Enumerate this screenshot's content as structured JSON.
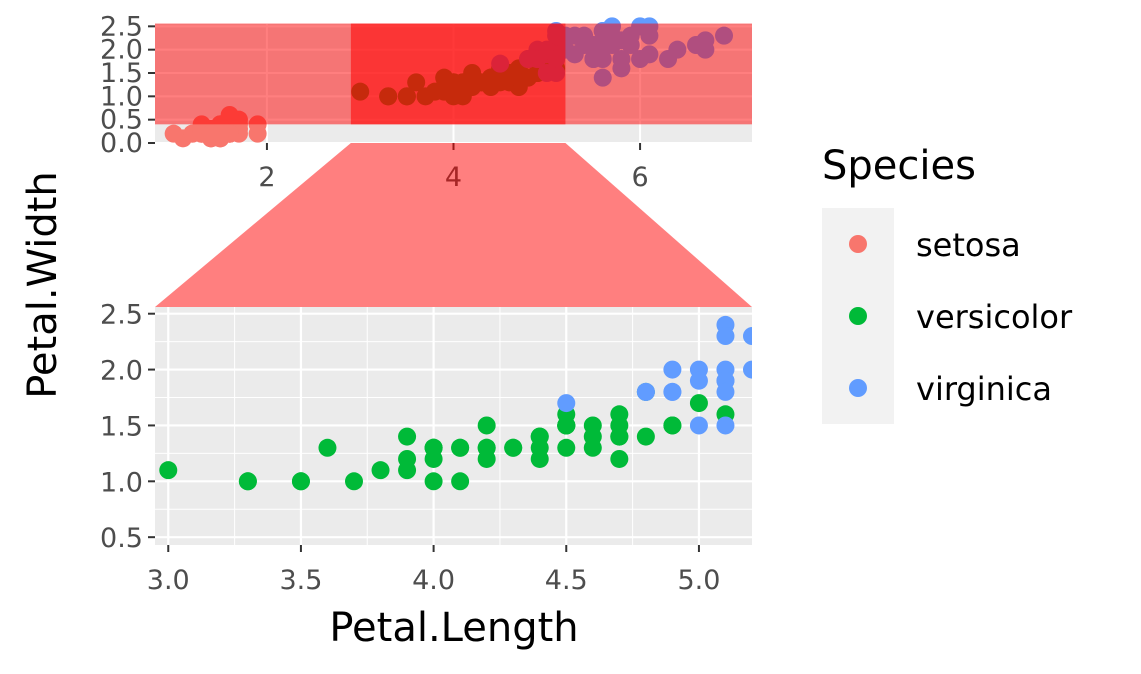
{
  "chart_data": {
    "type": "scatter",
    "xlabel": "Petal.Length",
    "ylabel": "Petal.Width",
    "overview_xticks": [
      2,
      4,
      6
    ],
    "overview_yticks": [
      "0.0",
      "0.5",
      "1.0",
      "1.5",
      "2.0",
      "2.5"
    ],
    "overview_xlim": [
      0.8,
      7.2
    ],
    "overview_ylim": [
      0.0,
      2.55
    ],
    "zoom_xlim": [
      2.95,
      5.2
    ],
    "zoom_ylim": [
      0.43,
      2.56
    ],
    "zoom_xticks": [
      "3.0",
      "3.5",
      "4.0",
      "4.5",
      "5.0"
    ],
    "zoom_yticks": [
      "0.5",
      "1.0",
      "1.5",
      "2.0",
      "2.5"
    ],
    "highlight_x_range": [
      2.9,
      5.2
    ],
    "highlight_y_range": [
      0.4,
      2.56
    ],
    "legend": {
      "title": "Species",
      "position": "right",
      "entries": [
        "setosa",
        "versicolor",
        "virginica"
      ]
    },
    "colors": {
      "setosa": "#F8766D",
      "versicolor": "#00BA38",
      "virginica": "#619CFF",
      "panel": "#EBEBEB",
      "highlight": "#FF0000"
    },
    "series": [
      {
        "name": "setosa",
        "points": [
          [
            1.4,
            0.2
          ],
          [
            1.4,
            0.2
          ],
          [
            1.3,
            0.2
          ],
          [
            1.5,
            0.2
          ],
          [
            1.4,
            0.2
          ],
          [
            1.7,
            0.4
          ],
          [
            1.4,
            0.3
          ],
          [
            1.5,
            0.2
          ],
          [
            1.4,
            0.2
          ],
          [
            1.5,
            0.1
          ],
          [
            1.5,
            0.2
          ],
          [
            1.6,
            0.2
          ],
          [
            1.4,
            0.1
          ],
          [
            1.1,
            0.1
          ],
          [
            1.2,
            0.2
          ],
          [
            1.5,
            0.4
          ],
          [
            1.3,
            0.4
          ],
          [
            1.4,
            0.3
          ],
          [
            1.7,
            0.3
          ],
          [
            1.5,
            0.3
          ],
          [
            1.7,
            0.2
          ],
          [
            1.5,
            0.4
          ],
          [
            1.0,
            0.2
          ],
          [
            1.7,
            0.5
          ],
          [
            1.9,
            0.2
          ],
          [
            1.6,
            0.2
          ],
          [
            1.6,
            0.4
          ],
          [
            1.5,
            0.2
          ],
          [
            1.4,
            0.2
          ],
          [
            1.6,
            0.2
          ],
          [
            1.6,
            0.2
          ],
          [
            1.5,
            0.4
          ],
          [
            1.5,
            0.1
          ],
          [
            1.4,
            0.2
          ],
          [
            1.5,
            0.2
          ],
          [
            1.2,
            0.2
          ],
          [
            1.3,
            0.2
          ],
          [
            1.4,
            0.1
          ],
          [
            1.3,
            0.2
          ],
          [
            1.5,
            0.2
          ],
          [
            1.3,
            0.3
          ],
          [
            1.3,
            0.3
          ],
          [
            1.3,
            0.2
          ],
          [
            1.6,
            0.6
          ],
          [
            1.9,
            0.4
          ],
          [
            1.4,
            0.3
          ],
          [
            1.6,
            0.2
          ],
          [
            1.4,
            0.2
          ],
          [
            1.5,
            0.2
          ],
          [
            1.4,
            0.2
          ]
        ]
      },
      {
        "name": "versicolor",
        "points": [
          [
            4.7,
            1.4
          ],
          [
            4.5,
            1.5
          ],
          [
            4.9,
            1.5
          ],
          [
            4.0,
            1.3
          ],
          [
            4.6,
            1.5
          ],
          [
            4.5,
            1.3
          ],
          [
            4.7,
            1.6
          ],
          [
            3.3,
            1.0
          ],
          [
            4.6,
            1.3
          ],
          [
            3.9,
            1.4
          ],
          [
            3.5,
            1.0
          ],
          [
            4.2,
            1.5
          ],
          [
            4.0,
            1.0
          ],
          [
            4.7,
            1.4
          ],
          [
            3.6,
            1.3
          ],
          [
            4.4,
            1.4
          ],
          [
            4.5,
            1.5
          ],
          [
            4.1,
            1.0
          ],
          [
            4.5,
            1.5
          ],
          [
            3.9,
            1.1
          ],
          [
            4.8,
            1.8
          ],
          [
            4.0,
            1.3
          ],
          [
            4.9,
            1.5
          ],
          [
            4.7,
            1.2
          ],
          [
            4.3,
            1.3
          ],
          [
            4.4,
            1.4
          ],
          [
            4.8,
            1.4
          ],
          [
            5.0,
            1.7
          ],
          [
            4.5,
            1.5
          ],
          [
            3.5,
            1.0
          ],
          [
            3.8,
            1.1
          ],
          [
            3.7,
            1.0
          ],
          [
            3.9,
            1.2
          ],
          [
            5.1,
            1.6
          ],
          [
            4.5,
            1.5
          ],
          [
            4.5,
            1.6
          ],
          [
            4.7,
            1.5
          ],
          [
            4.4,
            1.3
          ],
          [
            4.1,
            1.3
          ],
          [
            4.0,
            1.3
          ],
          [
            4.4,
            1.2
          ],
          [
            4.6,
            1.4
          ],
          [
            4.0,
            1.2
          ],
          [
            3.3,
            1.0
          ],
          [
            4.2,
            1.3
          ],
          [
            4.2,
            1.2
          ],
          [
            4.2,
            1.3
          ],
          [
            4.3,
            1.3
          ],
          [
            3.0,
            1.1
          ],
          [
            4.1,
            1.3
          ]
        ]
      },
      {
        "name": "virginica",
        "points": [
          [
            6.0,
            2.5
          ],
          [
            5.1,
            1.9
          ],
          [
            5.9,
            2.1
          ],
          [
            5.6,
            1.8
          ],
          [
            5.8,
            2.2
          ],
          [
            6.6,
            2.1
          ],
          [
            4.5,
            1.7
          ],
          [
            6.3,
            1.8
          ],
          [
            5.8,
            1.8
          ],
          [
            6.1,
            2.5
          ],
          [
            5.1,
            2.0
          ],
          [
            5.3,
            1.9
          ],
          [
            5.5,
            2.1
          ],
          [
            5.0,
            2.0
          ],
          [
            5.1,
            2.4
          ],
          [
            5.3,
            2.3
          ],
          [
            5.5,
            1.8
          ],
          [
            6.7,
            2.2
          ],
          [
            6.9,
            2.3
          ],
          [
            5.0,
            1.5
          ],
          [
            5.7,
            2.3
          ],
          [
            4.9,
            2.0
          ],
          [
            6.7,
            2.0
          ],
          [
            4.9,
            1.8
          ],
          [
            5.7,
            2.1
          ],
          [
            6.0,
            1.8
          ],
          [
            4.8,
            1.8
          ],
          [
            4.9,
            1.8
          ],
          [
            5.6,
            2.1
          ],
          [
            5.8,
            1.6
          ],
          [
            6.1,
            1.9
          ],
          [
            6.4,
            2.0
          ],
          [
            5.6,
            2.2
          ],
          [
            5.1,
            1.5
          ],
          [
            5.6,
            1.4
          ],
          [
            6.1,
            2.3
          ],
          [
            5.6,
            2.4
          ],
          [
            5.5,
            1.8
          ],
          [
            4.8,
            1.8
          ],
          [
            5.4,
            2.1
          ],
          [
            5.6,
            2.4
          ],
          [
            5.1,
            2.3
          ],
          [
            5.1,
            1.9
          ],
          [
            5.9,
            2.3
          ],
          [
            5.7,
            2.5
          ],
          [
            5.2,
            2.3
          ],
          [
            5.0,
            1.9
          ],
          [
            5.2,
            2.0
          ],
          [
            5.4,
            2.3
          ],
          [
            5.1,
            1.8
          ]
        ]
      }
    ]
  }
}
